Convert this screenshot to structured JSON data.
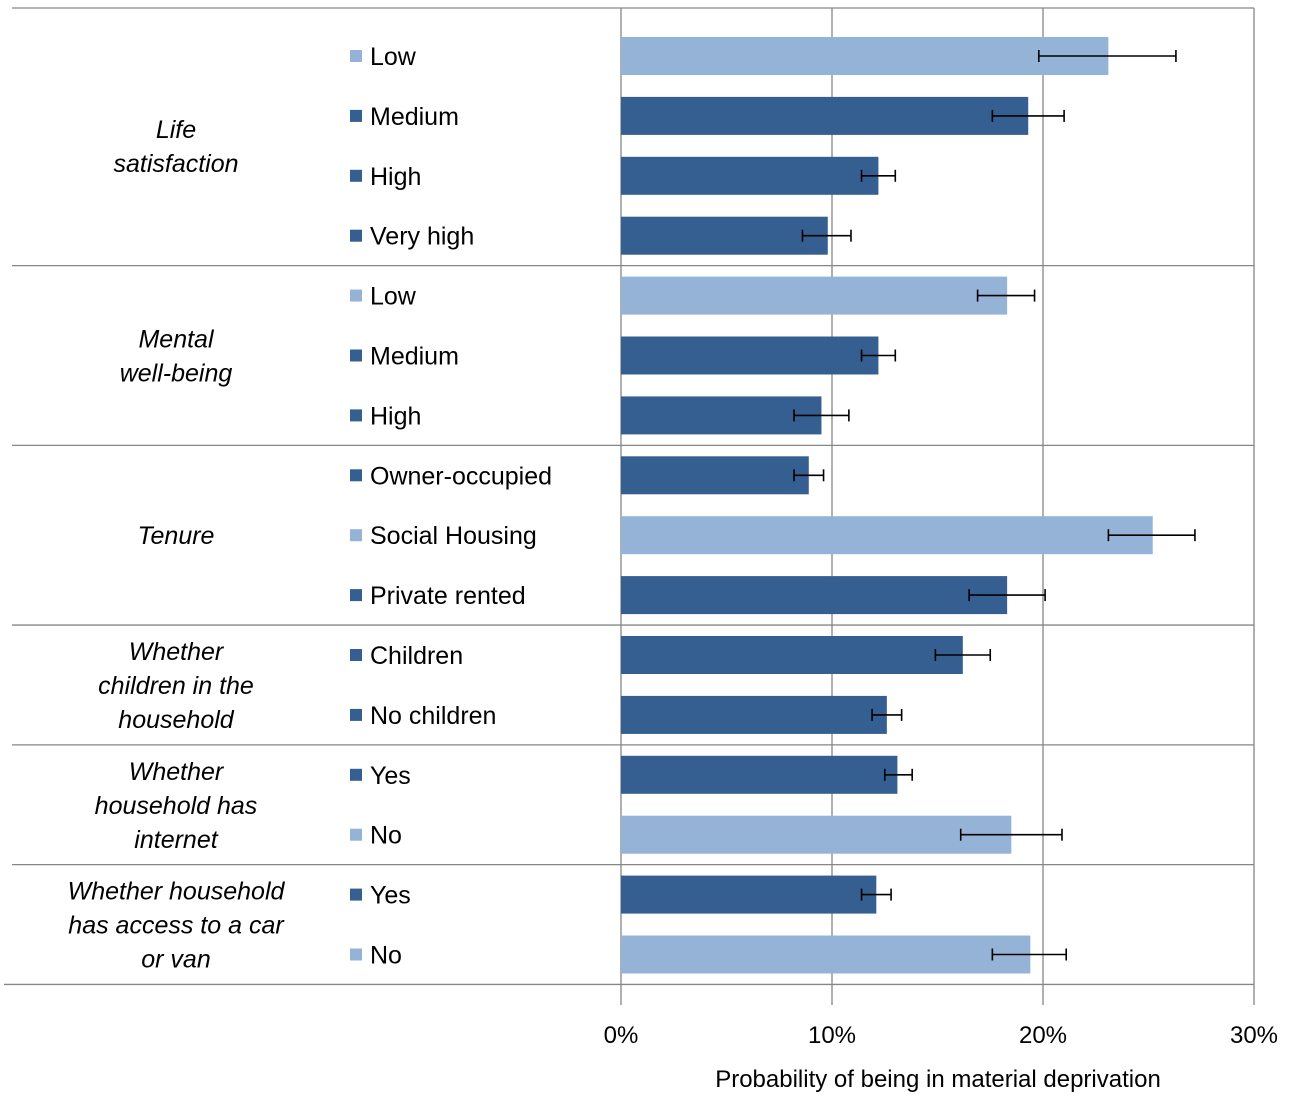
{
  "chart_data": {
    "type": "bar",
    "orientation": "horizontal",
    "xlabel": "Probability of being in material deprivation",
    "xlim": [
      0,
      30
    ],
    "x_ticks": [
      "0%",
      "10%",
      "20%",
      "30%"
    ],
    "grid": true,
    "colors": {
      "dark": "#365f91",
      "light": "#95b3d7",
      "error_bar": "#000000",
      "grid": "#868686"
    },
    "groups": [
      {
        "label": "Life satisfaction",
        "label_lines": [
          "Life",
          "satisfaction"
        ],
        "items": [
          {
            "category": "Low",
            "value": 23.1,
            "err_low": 19.8,
            "err_high": 26.3,
            "shade": "light"
          },
          {
            "category": "Medium",
            "value": 19.3,
            "err_low": 17.6,
            "err_high": 21.0,
            "shade": "dark"
          },
          {
            "category": "High",
            "value": 12.2,
            "err_low": 11.4,
            "err_high": 13.0,
            "shade": "dark"
          },
          {
            "category": "Very high",
            "value": 9.8,
            "err_low": 8.6,
            "err_high": 10.9,
            "shade": "dark"
          }
        ]
      },
      {
        "label": "Mental well-being",
        "label_lines": [
          "Mental",
          "well-being"
        ],
        "items": [
          {
            "category": "Low",
            "value": 18.3,
            "err_low": 16.9,
            "err_high": 19.6,
            "shade": "light"
          },
          {
            "category": "Medium",
            "value": 12.2,
            "err_low": 11.4,
            "err_high": 13.0,
            "shade": "dark"
          },
          {
            "category": "High",
            "value": 9.5,
            "err_low": 8.2,
            "err_high": 10.8,
            "shade": "dark"
          }
        ]
      },
      {
        "label": "Tenure",
        "label_lines": [
          "Tenure"
        ],
        "items": [
          {
            "category": "Owner-occupied",
            "value": 8.9,
            "err_low": 8.2,
            "err_high": 9.6,
            "shade": "dark"
          },
          {
            "category": "Social Housing",
            "value": 25.2,
            "err_low": 23.1,
            "err_high": 27.2,
            "shade": "light"
          },
          {
            "category": "Private rented",
            "value": 18.3,
            "err_low": 16.5,
            "err_high": 20.1,
            "shade": "dark"
          }
        ]
      },
      {
        "label": "Whether children in the household",
        "label_lines": [
          "Whether",
          "children in the",
          "household"
        ],
        "items": [
          {
            "category": "Children",
            "value": 16.2,
            "err_low": 14.9,
            "err_high": 17.5,
            "shade": "dark"
          },
          {
            "category": "No children",
            "value": 12.6,
            "err_low": 11.9,
            "err_high": 13.3,
            "shade": "dark"
          }
        ]
      },
      {
        "label": "Whether household has internet",
        "label_lines": [
          "Whether",
          "household has",
          "internet"
        ],
        "items": [
          {
            "category": "Yes",
            "value": 13.1,
            "err_low": 12.5,
            "err_high": 13.8,
            "shade": "dark"
          },
          {
            "category": "No",
            "value": 18.5,
            "err_low": 16.1,
            "err_high": 20.9,
            "shade": "light"
          }
        ]
      },
      {
        "label": "Whether household has access to a car or van",
        "label_lines": [
          "Whether household",
          "has access to a car",
          "or van"
        ],
        "items": [
          {
            "category": "Yes",
            "value": 12.1,
            "err_low": 11.4,
            "err_high": 12.8,
            "shade": "dark"
          },
          {
            "category": "No",
            "value": 19.4,
            "err_low": 17.6,
            "err_high": 21.1,
            "shade": "light"
          }
        ]
      }
    ]
  }
}
